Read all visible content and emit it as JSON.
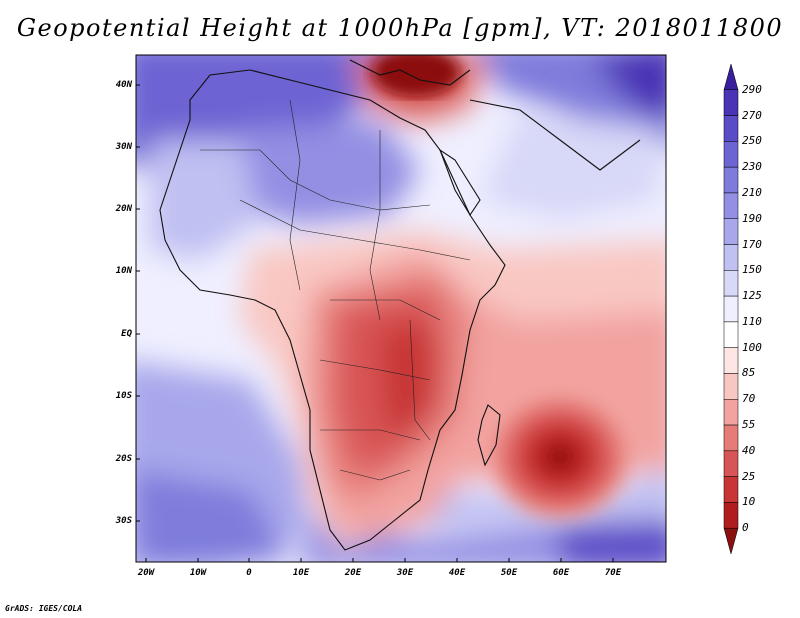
{
  "title": "Geopotential Height at 1000hPa [gpm], VT: 2018011800",
  "latitude_labels": [
    "40N",
    "30N",
    "20N",
    "10N",
    "EQ",
    "10S",
    "20S",
    "30S"
  ],
  "longitude_labels": [
    "20W",
    "10W",
    "0",
    "10E",
    "20E",
    "30E",
    "40E",
    "50E",
    "60E",
    "70E"
  ],
  "colorbar": {
    "labels": [
      "290",
      "270",
      "250",
      "230",
      "210",
      "190",
      "170",
      "150",
      "125",
      "110",
      "100",
      "85",
      "70",
      "55",
      "40",
      "25",
      "10",
      "0"
    ],
    "colors": [
      "#3a1e9e",
      "#4a33b4",
      "#5a4cc7",
      "#6d64d3",
      "#7f7bdc",
      "#938fe3",
      "#a8a7eb",
      "#c0c0f2",
      "#d8d8f8",
      "#efefff",
      "#ffffff",
      "#fde6e3",
      "#f9c7c2",
      "#f2a3a0",
      "#e57c78",
      "#d85555",
      "#c83535",
      "#b01d1d",
      "#8b0f0f"
    ]
  },
  "credit": "GrADS: IGES/COLA"
}
